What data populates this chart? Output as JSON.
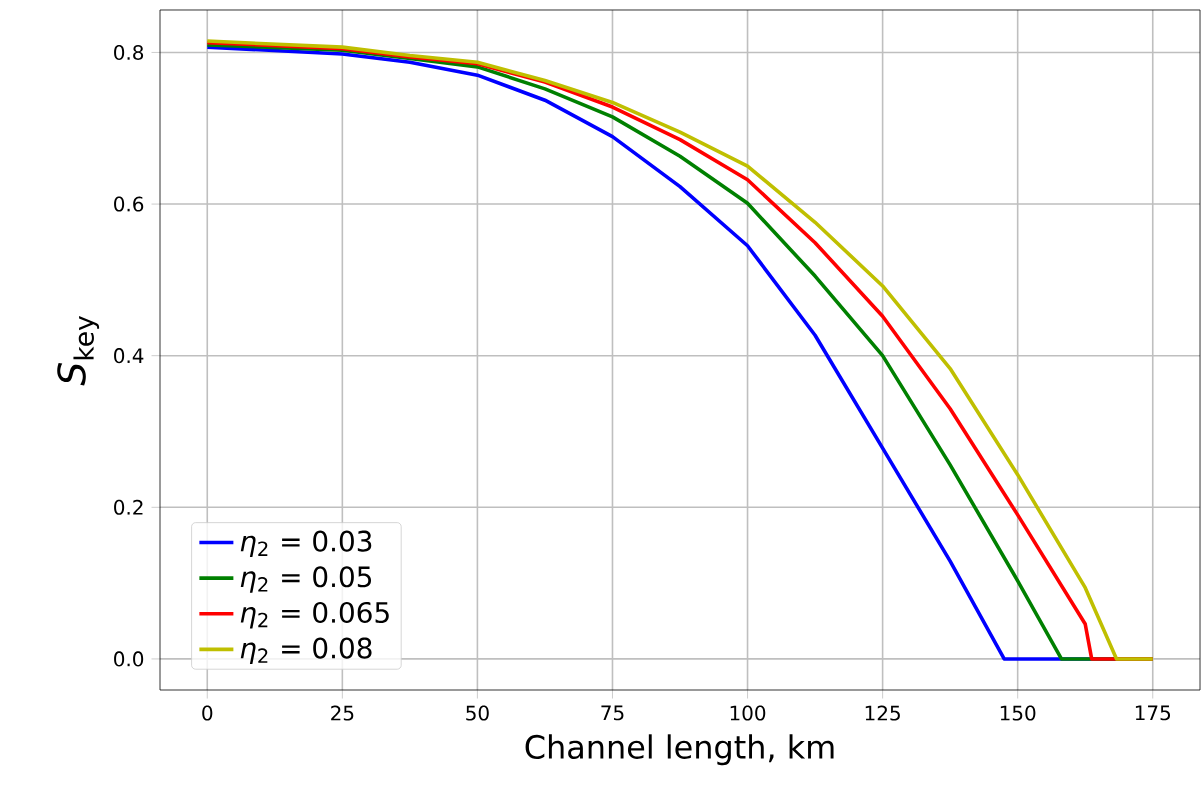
{
  "chart_data": {
    "type": "line",
    "xlabel": "Channel length, km",
    "ylabel": "*S*$_{key}$",
    "xlim": [
      -8.75,
      183.75
    ],
    "ylim": [
      -0.041,
      0.856
    ],
    "xticks": [
      0,
      25,
      50,
      75,
      100,
      125,
      150,
      175
    ],
    "yticks": [
      {
        "value": 0,
        "label": "0.0"
      },
      0.2,
      0.4,
      0.6,
      0.8
    ],
    "grid": true,
    "legend": "bottom left",
    "line_style": "solid",
    "marker": "none",
    "series": [
      {
        "name": "*η*$_{2}$ = 0.03",
        "color": "#0000ff",
        "x": [
          0,
          25,
          37.5,
          50,
          62.5,
          75,
          87.5,
          100,
          112.5,
          125,
          137.5,
          147.5,
          175
        ],
        "values": [
          0.807,
          0.798,
          0.787,
          0.77,
          0.737,
          0.689,
          0.623,
          0.545,
          0.427,
          0.278,
          0.129,
          0,
          0
        ]
      },
      {
        "name": "*η*$_{2}$ = 0.05",
        "color": "#008000",
        "x": [
          0,
          25,
          37.5,
          50,
          62.5,
          75,
          87.5,
          100,
          112.5,
          125,
          137.5,
          150,
          158.1,
          175
        ],
        "values": [
          0.81,
          0.803,
          0.792,
          0.781,
          0.752,
          0.715,
          0.663,
          0.601,
          0.505,
          0.4,
          0.256,
          0.103,
          0,
          0
        ]
      },
      {
        "name": "*η*$_{2}$ = 0.065",
        "color": "#ff0000",
        "x": [
          0,
          25,
          37.5,
          50,
          62.5,
          75,
          87.5,
          100,
          112.5,
          125,
          137.5,
          150,
          162.5,
          163.7,
          175
        ],
        "values": [
          0.813,
          0.805,
          0.794,
          0.785,
          0.761,
          0.728,
          0.685,
          0.632,
          0.549,
          0.452,
          0.33,
          0.19,
          0.046,
          0,
          0
        ]
      },
      {
        "name": "*η*$_{2}$ = 0.08",
        "color": "#bfbf00",
        "x": [
          0,
          25,
          37.5,
          50,
          62.5,
          75,
          87.5,
          100,
          112.5,
          125,
          137.5,
          150,
          162.5,
          168.3,
          175
        ],
        "values": [
          0.815,
          0.807,
          0.796,
          0.787,
          0.763,
          0.734,
          0.695,
          0.65,
          0.576,
          0.492,
          0.383,
          0.243,
          0.094,
          0,
          0
        ]
      }
    ]
  }
}
